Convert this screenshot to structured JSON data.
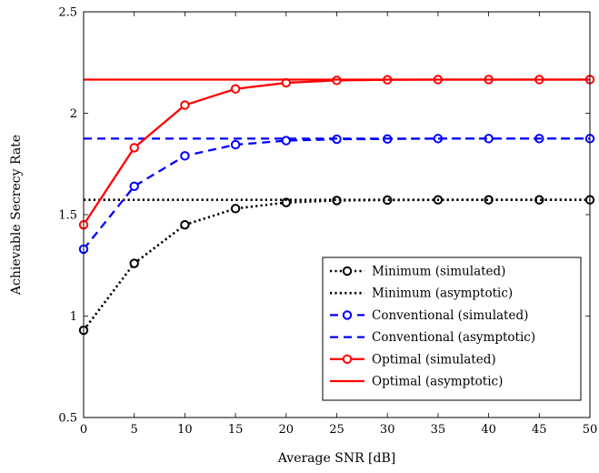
{
  "chart_data": {
    "type": "line",
    "xlabel": "Average SNR [dB]",
    "ylabel": "Achievable Secrecy Rate",
    "xlim": [
      0,
      50
    ],
    "ylim": [
      0.5,
      2.5
    ],
    "xticks": [
      0,
      5,
      10,
      15,
      20,
      25,
      30,
      35,
      40,
      45,
      50
    ],
    "yticks": [
      0.5,
      1,
      1.5,
      2,
      2.5
    ],
    "ytick_labels": [
      "0.5",
      "1",
      "1.5",
      "2",
      "2.5"
    ],
    "grid": false,
    "legend_position": "bottom-right",
    "x": [
      0,
      5,
      10,
      15,
      20,
      25,
      30,
      35,
      40,
      45,
      50
    ],
    "series": [
      {
        "name": "Minimum (simulated)",
        "color": "#000000",
        "style": "dotted",
        "marker": "circle",
        "values": [
          0.93,
          1.26,
          1.45,
          1.53,
          1.56,
          1.57,
          1.572,
          1.573,
          1.573,
          1.573,
          1.573
        ]
      },
      {
        "name": "Minimum (asymptotic)",
        "color": "#000000",
        "style": "dotted",
        "marker": "none",
        "constant": 1.573
      },
      {
        "name": "Conventional (simulated)",
        "color": "#0000ff",
        "style": "dashed",
        "marker": "circle",
        "values": [
          1.33,
          1.64,
          1.79,
          1.845,
          1.865,
          1.872,
          1.873,
          1.875,
          1.875,
          1.875,
          1.875
        ]
      },
      {
        "name": "Conventional (asymptotic)",
        "color": "#0000ff",
        "style": "dashed",
        "marker": "none",
        "constant": 1.875
      },
      {
        "name": "Optimal (simulated)",
        "color": "#ff0000",
        "style": "solid",
        "marker": "circle",
        "values": [
          1.45,
          1.83,
          2.04,
          2.12,
          2.15,
          2.162,
          2.165,
          2.166,
          2.166,
          2.166,
          2.166
        ]
      },
      {
        "name": "Optimal (asymptotic)",
        "color": "#ff0000",
        "style": "solid",
        "marker": "none",
        "constant": 2.166
      }
    ]
  }
}
